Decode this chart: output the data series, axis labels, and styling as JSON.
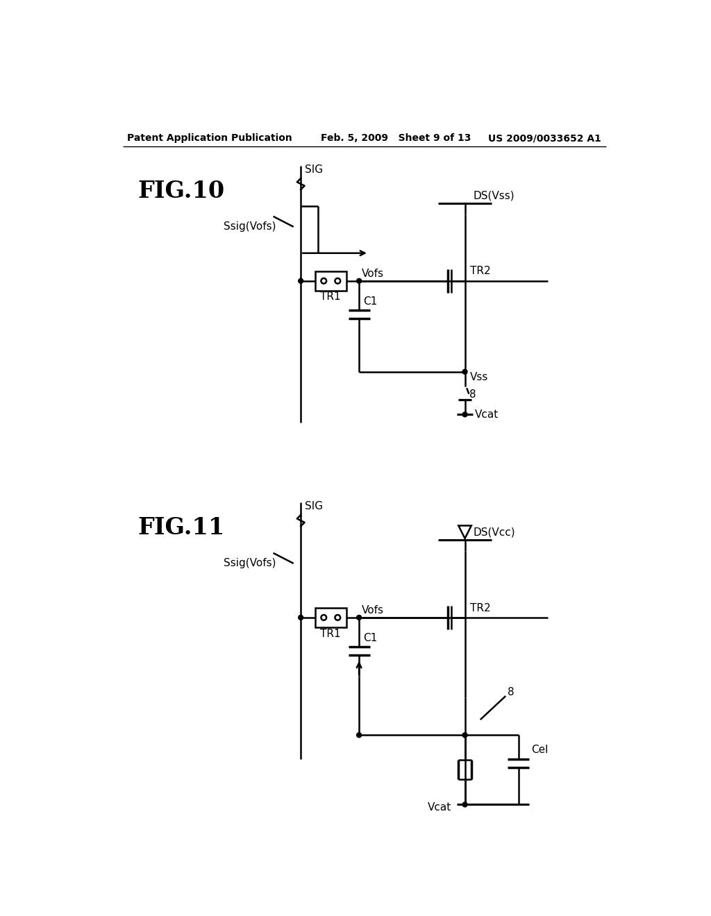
{
  "bg_color": "#ffffff",
  "header_left": "Patent Application Publication",
  "header_mid": "Feb. 5, 2009   Sheet 9 of 13",
  "header_right": "US 2009/0033652 A1"
}
